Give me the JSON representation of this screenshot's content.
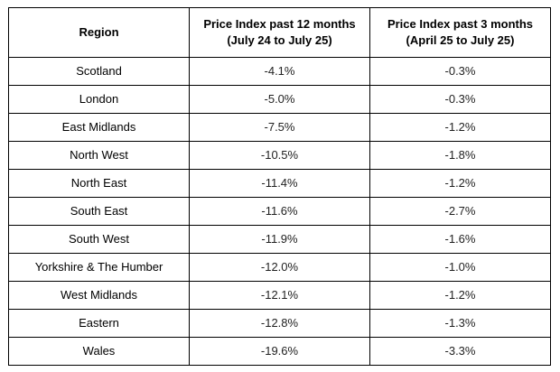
{
  "table": {
    "headers": {
      "region": "Region",
      "price_12m_line1": "Price Index past 12 months",
      "price_12m_line2": "(July 24 to July 25)",
      "price_3m_line1": "Price Index past 3 months",
      "price_3m_line2": "(April 25 to July 25)"
    },
    "rows": [
      {
        "region": "Scotland",
        "price_12m": "-4.1%",
        "price_3m": "-0.3%"
      },
      {
        "region": "London",
        "price_12m": "-5.0%",
        "price_3m": "-0.3%"
      },
      {
        "region": "East Midlands",
        "price_12m": "-7.5%",
        "price_3m": "-1.2%"
      },
      {
        "region": "North West",
        "price_12m": "-10.5%",
        "price_3m": "-1.8%"
      },
      {
        "region": "North East",
        "price_12m": "-11.4%",
        "price_3m": "-1.2%"
      },
      {
        "region": "South East",
        "price_12m": "-11.6%",
        "price_3m": "-2.7%"
      },
      {
        "region": "South West",
        "price_12m": "-11.9%",
        "price_3m": "-1.6%"
      },
      {
        "region": "Yorkshire & The Humber",
        "price_12m": "-12.0%",
        "price_3m": "-1.0%"
      },
      {
        "region": "West Midlands",
        "price_12m": "-12.1%",
        "price_3m": "-1.2%"
      },
      {
        "region": "Eastern",
        "price_12m": "-12.8%",
        "price_3m": "-1.3%"
      },
      {
        "region": "Wales",
        "price_12m": "-19.6%",
        "price_3m": "-3.3%"
      }
    ]
  }
}
